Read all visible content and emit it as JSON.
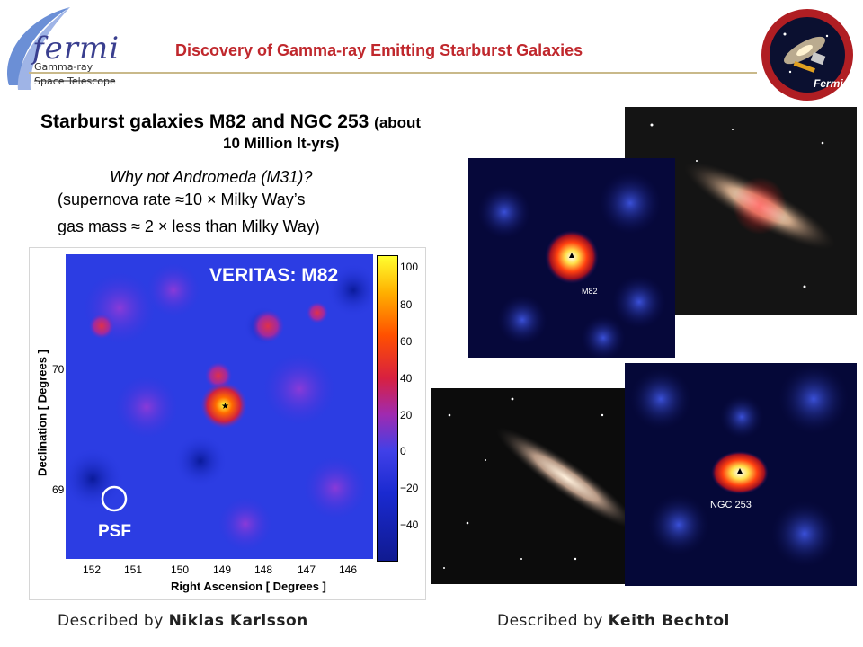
{
  "header": {
    "title": "Discovery of Gamma-ray Emitting Starburst Galaxies",
    "logo_word": "fermi",
    "logo_sub1": "Gamma-ray",
    "logo_sub2": "Space Telescope",
    "patch_label": "Fermi"
  },
  "slide": {
    "heading_main": "Starburst galaxies M82 and NGC 253",
    "heading_paren": "(about",
    "heading_line2": "10 Million lt-yrs)",
    "question": "Why not Andromeda (M31)?",
    "note1": "(supernova rate ≈10 × Milky Way’s",
    "note2": "gas mass ≈ 2 × less than Milky Way)"
  },
  "veritas_map": {
    "title": "VERITAS: M82",
    "psf_label": "PSF",
    "ylabel": "Declination [ Degrees ]",
    "xlabel": "Right Ascension [ Degrees ]",
    "yticks": [
      "70",
      "69"
    ],
    "xticks": [
      "152",
      "151",
      "150",
      "149",
      "148",
      "147",
      "146"
    ],
    "colorbar_ticks": [
      "100",
      "80",
      "60",
      "40",
      "20",
      "0",
      "−20",
      "−40"
    ]
  },
  "fermi_maps": {
    "m82_label": "M82",
    "ngc_label": "NGC 253"
  },
  "credits": {
    "left_prefix": "Described by",
    "left_name": "Niklas Karlsson",
    "right_prefix": "Described by",
    "right_name": "Keith Bechtol"
  },
  "colors": {
    "title_red": "#c0282d",
    "map_blue": "#1a2fd6",
    "gamma_bg": "#050a3a"
  }
}
